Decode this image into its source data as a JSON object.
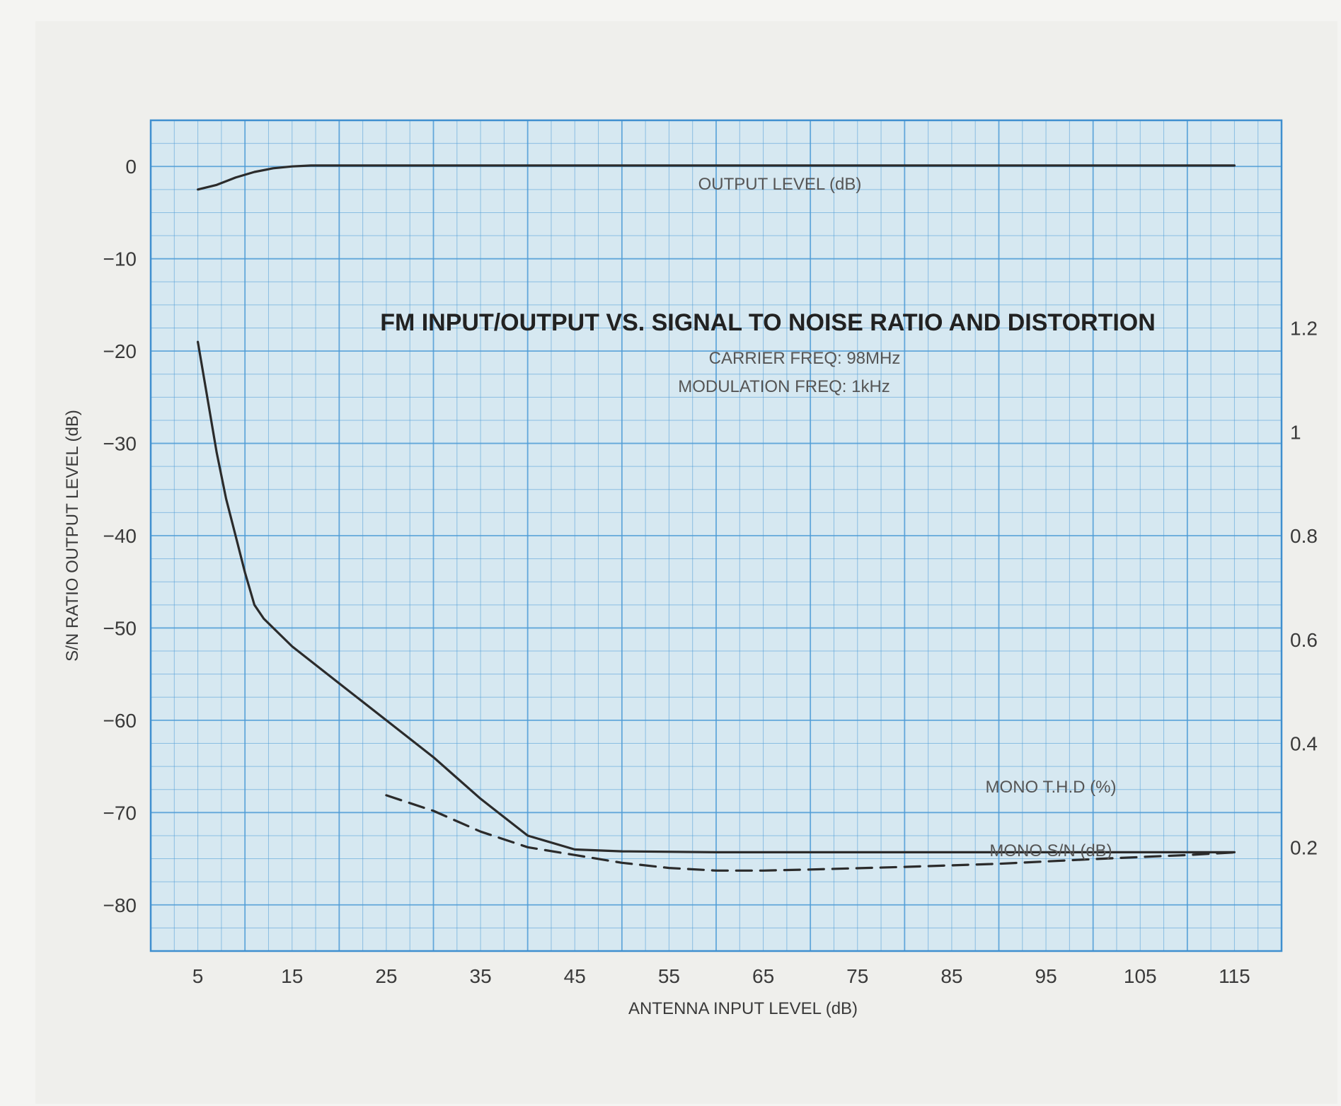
{
  "chart_data": {
    "type": "line",
    "title": "FM INPUT/OUTPUT VS. SIGNAL TO NOISE RATIO AND DISTORTION",
    "subtitle_lines": [
      "CARRIER FREQ: 98MHz",
      "MODULATION FREQ: 1kHz"
    ],
    "xlabel": "ANTENNA INPUT LEVEL (dB)",
    "ylabel": "S/N RATIO OUTPUT LEVEL (dB)",
    "xlim": [
      0,
      120
    ],
    "ylim": [
      -85,
      5
    ],
    "y2lim": [
      0,
      1.6
    ],
    "grid": true,
    "x_ticks": [
      5,
      15,
      25,
      35,
      45,
      55,
      65,
      75,
      85,
      95,
      105,
      115
    ],
    "x_tick_labels": [
      "5",
      "15",
      "25",
      "35",
      "45",
      "55",
      "65",
      "75",
      "85",
      "95",
      "105",
      "115"
    ],
    "y_ticks": [
      0,
      -10,
      -20,
      -30,
      -40,
      -50,
      -60,
      -70,
      -80
    ],
    "y_tick_labels": [
      "0",
      "−10",
      "−20",
      "−30",
      "−40",
      "−50",
      "−60",
      "−70",
      "−80"
    ],
    "y2_ticks": [
      1.2,
      1.0,
      0.8,
      0.6,
      0.4,
      0.2
    ],
    "y2_tick_labels": [
      "1.2",
      "1",
      "0.8",
      "0.6",
      "0.4",
      "0.2"
    ],
    "series": [
      {
        "name": "OUTPUT LEVEL (dB)",
        "axis": "left",
        "style": "solid",
        "x": [
          5,
          7,
          9,
          11,
          13,
          15,
          17,
          20,
          30,
          45,
          60,
          80,
          100,
          115
        ],
        "y": [
          -2.5,
          -2,
          -1.2,
          -0.6,
          -0.2,
          0,
          0.1,
          0.1,
          0.1,
          0.1,
          0.1,
          0.1,
          0.1,
          0.1
        ]
      },
      {
        "name": "MONO S/N (dB)",
        "axis": "left",
        "style": "solid",
        "x": [
          5,
          6,
          7,
          8,
          9,
          10,
          11,
          12,
          13,
          15,
          20,
          25,
          30,
          35,
          40,
          45,
          50,
          60,
          80,
          100,
          115
        ],
        "y": [
          -19,
          -25,
          -31,
          -36,
          -40,
          -44,
          -47.5,
          -49,
          -50,
          -52,
          -56,
          -60,
          -64,
          -68.5,
          -72.5,
          -74,
          -74.2,
          -74.3,
          -74.3,
          -74.3,
          -74.3
        ]
      },
      {
        "name": "MONO T.H.D (%)",
        "axis": "right",
        "style": "dashed",
        "x": [
          25,
          30,
          35,
          40,
          45,
          50,
          55,
          60,
          65,
          70,
          80,
          90,
          100,
          110,
          115
        ],
        "y": [
          0.3,
          0.27,
          0.23,
          0.2,
          0.185,
          0.17,
          0.16,
          0.155,
          0.155,
          0.157,
          0.162,
          0.168,
          0.177,
          0.185,
          0.19
        ]
      }
    ],
    "legend": "inline"
  }
}
